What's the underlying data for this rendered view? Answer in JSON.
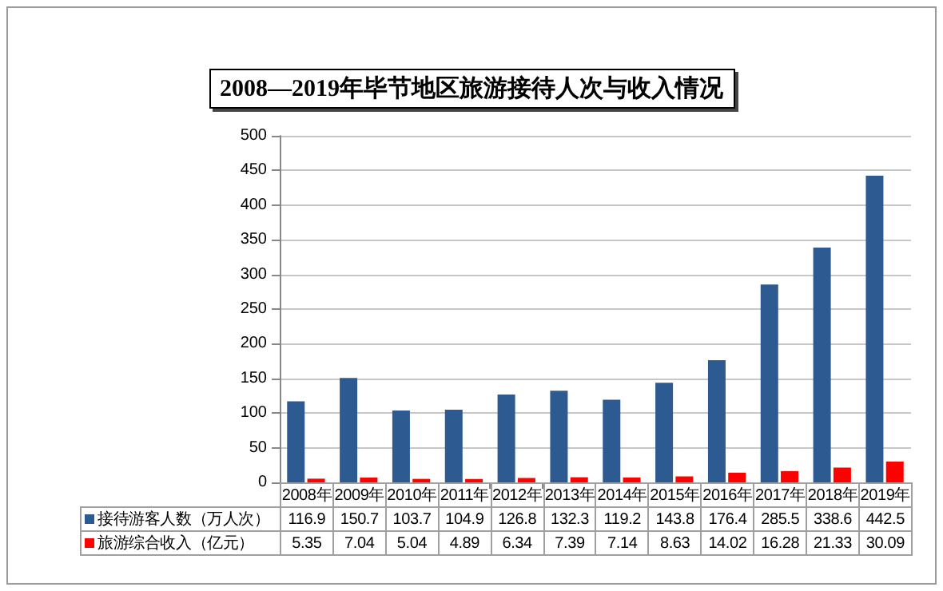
{
  "chart_data": {
    "type": "bar",
    "title": "2008—2019年毕节地区旅游接待人次与收入情况",
    "categories": [
      "2008年",
      "2009年",
      "2010年",
      "2011年",
      "2012年",
      "2013年",
      "2014年",
      "2015年",
      "2016年",
      "2017年",
      "2018年",
      "2019年"
    ],
    "series": [
      {
        "name": "接待游客人数（万人次）",
        "color": "#2e5a92",
        "values": [
          116.9,
          150.7,
          103.7,
          104.9,
          126.8,
          132.3,
          119.2,
          143.8,
          176.4,
          285.5,
          338.6,
          442.5
        ]
      },
      {
        "name": "旅游综合收入（亿元）",
        "color": "#ff0000",
        "values": [
          5.35,
          7.04,
          5.04,
          4.89,
          6.34,
          7.39,
          7.14,
          8.63,
          14.02,
          16.28,
          21.33,
          30.09
        ]
      }
    ],
    "ylim": [
      0,
      500
    ],
    "yticks": [
      0,
      50,
      100,
      150,
      200,
      250,
      300,
      350,
      400,
      450,
      500
    ],
    "grid": "y",
    "data_labels": true,
    "legend": "bottom"
  }
}
